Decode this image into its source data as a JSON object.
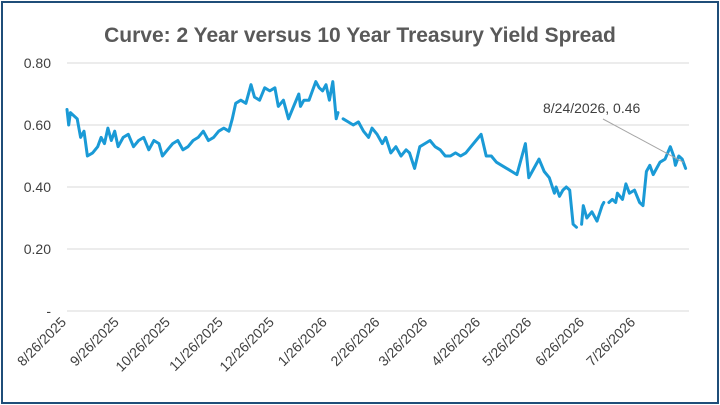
{
  "chart_data": {
    "type": "line",
    "title": "Curve: 2 Year versus 10 Year Treasury Yield Spread",
    "xlabel": "",
    "ylabel": "",
    "x_tick_labels": [
      "8/26/2025",
      "9/26/2025",
      "10/26/2025",
      "11/26/2025",
      "12/26/2025",
      "1/26/2026",
      "2/26/2026",
      "3/26/2026",
      "4/26/2026",
      "5/26/2026",
      "6/26/2026",
      "7/26/2026"
    ],
    "y_tick_labels": [
      "-",
      "0.20",
      "0.40",
      "0.60",
      "0.80"
    ],
    "ylim": [
      0,
      0.8
    ],
    "grid": "horizontal",
    "legend": "none",
    "series_color": "#1a9ad6",
    "annotation": {
      "text": "8/24/2026,  0.46",
      "x": "2026-08-24",
      "y": 0.46
    },
    "series": [
      {
        "segments": [
          [
            [
              "2025-08-26",
              0.65
            ],
            [
              "2025-08-27",
              0.6
            ],
            [
              "2025-08-28",
              0.64
            ],
            [
              "2025-09-01",
              0.62
            ],
            [
              "2025-09-03",
              0.56
            ],
            [
              "2025-09-05",
              0.58
            ],
            [
              "2025-09-07",
              0.5
            ],
            [
              "2025-09-10",
              0.51
            ],
            [
              "2025-09-13",
              0.53
            ],
            [
              "2025-09-15",
              0.56
            ],
            [
              "2025-09-17",
              0.54
            ],
            [
              "2025-09-19",
              0.59
            ],
            [
              "2025-09-21",
              0.55
            ],
            [
              "2025-09-23",
              0.58
            ],
            [
              "2025-09-25",
              0.53
            ],
            [
              "2025-09-28",
              0.56
            ],
            [
              "2025-10-01",
              0.57
            ],
            [
              "2025-10-04",
              0.53
            ],
            [
              "2025-10-07",
              0.55
            ],
            [
              "2025-10-10",
              0.56
            ],
            [
              "2025-10-13",
              0.52
            ],
            [
              "2025-10-16",
              0.55
            ],
            [
              "2025-10-19",
              0.54
            ],
            [
              "2025-10-21",
              0.5
            ],
            [
              "2025-10-24",
              0.52
            ],
            [
              "2025-10-27",
              0.54
            ],
            [
              "2025-10-30",
              0.55
            ],
            [
              "2025-11-02",
              0.52
            ],
            [
              "2025-11-05",
              0.53
            ],
            [
              "2025-11-08",
              0.55
            ],
            [
              "2025-11-11",
              0.56
            ],
            [
              "2025-11-14",
              0.58
            ],
            [
              "2025-11-17",
              0.55
            ],
            [
              "2025-11-20",
              0.56
            ],
            [
              "2025-11-23",
              0.58
            ],
            [
              "2025-11-26",
              0.59
            ],
            [
              "2025-11-29",
              0.58
            ],
            [
              "2025-12-01",
              0.62
            ],
            [
              "2025-12-03",
              0.67
            ],
            [
              "2025-12-06",
              0.68
            ],
            [
              "2025-12-09",
              0.67
            ],
            [
              "2025-12-12",
              0.73
            ],
            [
              "2025-12-14",
              0.69
            ],
            [
              "2025-12-17",
              0.68
            ],
            [
              "2025-12-20",
              0.72
            ],
            [
              "2025-12-23",
              0.71
            ],
            [
              "2025-12-26",
              0.72
            ],
            [
              "2025-12-28",
              0.66
            ],
            [
              "2025-12-31",
              0.68
            ],
            [
              "2026-01-03",
              0.62
            ],
            [
              "2026-01-06",
              0.66
            ],
            [
              "2026-01-09",
              0.7
            ],
            [
              "2026-01-10",
              0.66
            ],
            [
              "2026-01-12",
              0.68
            ],
            [
              "2026-01-15",
              0.68
            ],
            [
              "2026-01-17",
              0.71
            ],
            [
              "2026-01-19",
              0.74
            ],
            [
              "2026-01-21",
              0.72
            ],
            [
              "2026-01-23",
              0.71
            ],
            [
              "2026-01-25",
              0.73
            ],
            [
              "2026-01-27",
              0.68
            ],
            [
              "2026-01-29",
              0.74
            ],
            [
              "2026-01-31",
              0.62
            ],
            [
              "2026-02-01",
              0.64
            ]
          ],
          [
            [
              "2026-02-04",
              0.62
            ],
            [
              "2026-02-07",
              0.61
            ],
            [
              "2026-02-10",
              0.6
            ],
            [
              "2026-02-13",
              0.61
            ],
            [
              "2026-02-16",
              0.58
            ],
            [
              "2026-02-19",
              0.56
            ],
            [
              "2026-02-21",
              0.59
            ],
            [
              "2026-02-24",
              0.57
            ],
            [
              "2026-02-27",
              0.54
            ],
            [
              "2026-03-01",
              0.56
            ],
            [
              "2026-03-04",
              0.51
            ],
            [
              "2026-03-07",
              0.53
            ],
            [
              "2026-03-10",
              0.5
            ],
            [
              "2026-03-13",
              0.52
            ],
            [
              "2026-03-15",
              0.51
            ],
            [
              "2026-03-18",
              0.46
            ],
            [
              "2026-03-21",
              0.53
            ],
            [
              "2026-03-24",
              0.54
            ],
            [
              "2026-03-27",
              0.55
            ],
            [
              "2026-03-30",
              0.53
            ],
            [
              "2026-04-02",
              0.52
            ],
            [
              "2026-04-05",
              0.5
            ],
            [
              "2026-04-08",
              0.5
            ],
            [
              "2026-04-11",
              0.51
            ],
            [
              "2026-04-14",
              0.5
            ],
            [
              "2026-04-17",
              0.51
            ],
            [
              "2026-04-20",
              0.53
            ],
            [
              "2026-04-23",
              0.55
            ],
            [
              "2026-04-26",
              0.57
            ],
            [
              "2026-04-29",
              0.5
            ],
            [
              "2026-05-02",
              0.5
            ],
            [
              "2026-05-05",
              0.48
            ],
            [
              "2026-05-08",
              0.47
            ],
            [
              "2026-05-11",
              0.46
            ],
            [
              "2026-05-14",
              0.45
            ],
            [
              "2026-05-17",
              0.44
            ],
            [
              "2026-05-20",
              0.5
            ],
            [
              "2026-05-22",
              0.54
            ],
            [
              "2026-05-24",
              0.43
            ],
            [
              "2026-05-27",
              0.46
            ],
            [
              "2026-05-30",
              0.49
            ],
            [
              "2026-06-02",
              0.45
            ],
            [
              "2026-06-05",
              0.43
            ],
            [
              "2026-06-08",
              0.38
            ],
            [
              "2026-06-09",
              0.4
            ],
            [
              "2026-06-11",
              0.37
            ],
            [
              "2026-06-13",
              0.39
            ],
            [
              "2026-06-15",
              0.4
            ],
            [
              "2026-06-17",
              0.39
            ],
            [
              "2026-06-19",
              0.28
            ],
            [
              "2026-06-21",
              0.27
            ]
          ],
          [
            [
              "2026-06-24",
              0.28
            ],
            [
              "2026-06-25",
              0.34
            ],
            [
              "2026-06-27",
              0.3
            ],
            [
              "2026-06-30",
              0.32
            ],
            [
              "2026-07-03",
              0.29
            ],
            [
              "2026-07-06",
              0.34
            ],
            [
              "2026-07-07",
              0.35
            ]
          ],
          [
            [
              "2026-07-10",
              0.35
            ],
            [
              "2026-07-12",
              0.36
            ],
            [
              "2026-07-14",
              0.35
            ],
            [
              "2026-07-15",
              0.38
            ],
            [
              "2026-07-18",
              0.36
            ],
            [
              "2026-07-20",
              0.41
            ],
            [
              "2026-07-22",
              0.38
            ],
            [
              "2026-07-25",
              0.39
            ],
            [
              "2026-07-28",
              0.35
            ],
            [
              "2026-07-30",
              0.34
            ],
            [
              "2026-08-01",
              0.45
            ],
            [
              "2026-08-03",
              0.47
            ],
            [
              "2026-08-05",
              0.44
            ],
            [
              "2026-08-07",
              0.46
            ],
            [
              "2026-08-09",
              0.48
            ],
            [
              "2026-08-12",
              0.49
            ],
            [
              "2026-08-15",
              0.53
            ],
            [
              "2026-08-17",
              0.5
            ],
            [
              "2026-08-18",
              0.47
            ],
            [
              "2026-08-20",
              0.5
            ],
            [
              "2026-08-22",
              0.49
            ],
            [
              "2026-08-24",
              0.46
            ]
          ]
        ]
      }
    ]
  }
}
